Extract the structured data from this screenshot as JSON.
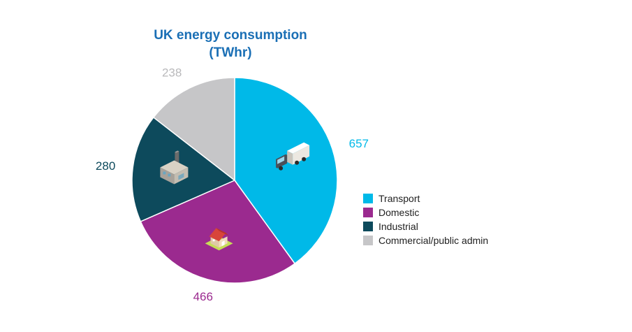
{
  "chart_data": {
    "type": "pie",
    "title_lines": [
      "UK energy consumption",
      "(TWhr)"
    ],
    "start_angle_deg": 0,
    "direction": "clockwise",
    "slices": [
      {
        "name": "Transport",
        "value": 657,
        "color": "#00b9e8",
        "icon": "truck-icon"
      },
      {
        "name": "Domestic",
        "value": 466,
        "color": "#9b2a8f",
        "icon": "house-icon"
      },
      {
        "name": "Industrial",
        "value": 280,
        "color": "#0d4a5c",
        "icon": "factory-icon"
      },
      {
        "name": "Commercial/public admin",
        "value": 238,
        "color": "#c6c6c8",
        "icon": ""
      }
    ],
    "legend_position": "right",
    "title_color": "#1a6fb5"
  }
}
